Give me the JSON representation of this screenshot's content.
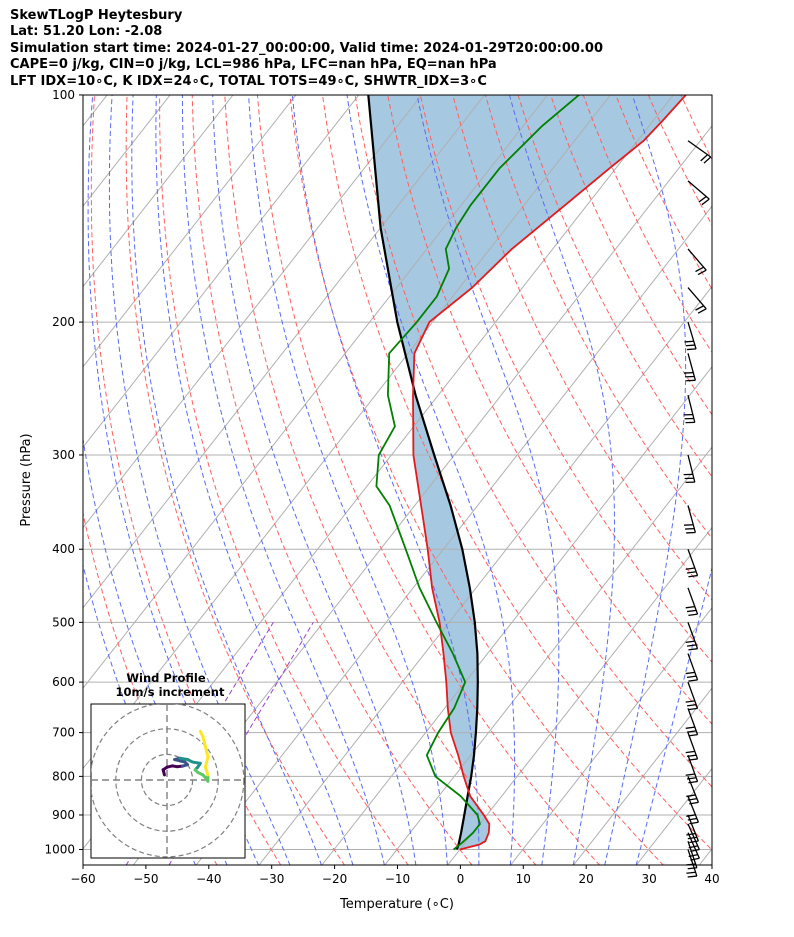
{
  "header": {
    "line1": "SkewTLogP Heytesbury",
    "line2": "Lat: 51.20   Lon: -2.08",
    "line3": "Simulation start time: 2024-01-27_00:00:00, Valid time: 2024-01-29T20:00:00.00",
    "line4": "CAPE=0 j/kg, CIN=0 j/kg, LCL=986 hPa, LFC=nan hPa, EQ=nan hPa",
    "line5": "LFT IDX=10∘C, K IDX=24∘C, TOTAL TOTS=49∘C, SHWTR_IDX=3∘C"
  },
  "chart_data": {
    "type": "skewt",
    "xlabel": "Temperature (∘C)",
    "ylabel": "Pressure (hPa)",
    "xlim": [
      -60,
      40
    ],
    "ylim": [
      1050,
      100
    ],
    "x_scale": "linear",
    "y_scale": "log",
    "grid": true,
    "x_ticks": [
      "−60",
      "−50",
      "−40",
      "−30",
      "−20",
      "−10",
      "0",
      "10",
      "20",
      "30",
      "40"
    ],
    "y_ticks": [
      100,
      200,
      300,
      400,
      500,
      600,
      700,
      800,
      900,
      1000
    ],
    "temperature": {
      "color": "#e41a1c",
      "pressure": [
        1000,
        985,
        975,
        950,
        925,
        900,
        850,
        800,
        750,
        700,
        650,
        600,
        550,
        500,
        450,
        400,
        350,
        300,
        250,
        220,
        200,
        180,
        160,
        140,
        125,
        115,
        108,
        100
      ],
      "temp": [
        10,
        12.5,
        13,
        12.5,
        11.5,
        9.5,
        5,
        1.5,
        -2,
        -6,
        -9.5,
        -13,
        -17,
        -21.5,
        -27,
        -32.5,
        -39,
        -46.5,
        -54,
        -59,
        -60.5,
        -58,
        -56.5,
        -53.5,
        -51,
        -49,
        -48.5,
        -48
      ]
    },
    "dewpoint": {
      "color": "#008000",
      "pressure": [
        1000,
        980,
        950,
        925,
        900,
        850,
        800,
        750,
        700,
        650,
        600,
        550,
        500,
        450,
        400,
        350,
        330,
        300,
        275,
        250,
        220,
        200,
        185,
        170,
        160,
        150,
        140,
        125,
        110,
        100
      ],
      "dewpoint": [
        9,
        9.5,
        10,
        10,
        8.5,
        3.5,
        -3,
        -7,
        -8,
        -8.5,
        -10,
        -15.5,
        -22,
        -29,
        -36,
        -44,
        -48.5,
        -52,
        -53,
        -58,
        -63,
        -62.5,
        -62.5,
        -64,
        -67,
        -68,
        -68.5,
        -68.5,
        -67,
        -65
      ]
    },
    "parcel": {
      "color": "#000000",
      "pressure": [
        1000,
        986,
        950,
        900,
        850,
        800,
        750,
        700,
        650,
        600,
        550,
        500,
        450,
        400,
        350,
        300,
        250,
        200,
        150,
        100
      ],
      "temp": [
        9.5,
        9.2,
        8.1,
        6.4,
        4.6,
        2.7,
        0.5,
        -2.0,
        -4.8,
        -8.0,
        -11.6,
        -15.9,
        -21.0,
        -27.0,
        -34.3,
        -43.2,
        -53.6,
        -65.6,
        -80.0,
        -98.5
      ]
    },
    "wind_barbs": [
      {
        "p": 1000,
        "u": -2,
        "v": 6
      },
      {
        "p": 975,
        "u": -3,
        "v": 9
      },
      {
        "p": 950,
        "u": -4,
        "v": 9
      },
      {
        "p": 925,
        "u": -4,
        "v": 9
      },
      {
        "p": 900,
        "u": -4,
        "v": 10
      },
      {
        "p": 850,
        "u": -4,
        "v": 10
      },
      {
        "p": 800,
        "u": -4,
        "v": 10
      },
      {
        "p": 750,
        "u": -4,
        "v": 11
      },
      {
        "p": 700,
        "u": -4,
        "v": 11
      },
      {
        "p": 650,
        "u": -4,
        "v": 11
      },
      {
        "p": 600,
        "u": -4,
        "v": 11
      },
      {
        "p": 550,
        "u": -4,
        "v": 11
      },
      {
        "p": 500,
        "u": -4,
        "v": 11
      },
      {
        "p": 450,
        "u": -4,
        "v": 11
      },
      {
        "p": 400,
        "u": -4,
        "v": 11
      },
      {
        "p": 350,
        "u": -3,
        "v": 11
      },
      {
        "p": 300,
        "u": -3,
        "v": 12
      },
      {
        "p": 250,
        "u": -3,
        "v": 12
      },
      {
        "p": 220,
        "u": -3,
        "v": 11
      },
      {
        "p": 200,
        "u": -3,
        "v": 10
      },
      {
        "p": 180,
        "u": -6,
        "v": 7
      },
      {
        "p": 160,
        "u": -6,
        "v": 7
      },
      {
        "p": 130,
        "u": -7,
        "v": 6
      },
      {
        "p": 115,
        "u": -7,
        "v": 5
      }
    ],
    "inset": {
      "title": "Wind Profile",
      "subtitle": "10m/s increment",
      "rings_ms": [
        10,
        20,
        30
      ],
      "hodograph": [
        {
          "u": -1,
          "v": 2
        },
        {
          "u": -1.5,
          "v": 4
        },
        {
          "u": 0,
          "v": 5
        },
        {
          "u": 2,
          "v": 5.5
        },
        {
          "u": 4,
          "v": 5.2
        },
        {
          "u": 6,
          "v": 5.4
        },
        {
          "u": 8,
          "v": 6
        },
        {
          "u": 7,
          "v": 7
        },
        {
          "u": 5,
          "v": 7.5
        },
        {
          "u": 3,
          "v": 8
        },
        {
          "u": 5,
          "v": 8.5
        },
        {
          "u": 8,
          "v": 8
        },
        {
          "u": 10,
          "v": 7
        },
        {
          "u": 13,
          "v": 6.5
        },
        {
          "u": 12,
          "v": 5
        },
        {
          "u": 11,
          "v": 4
        },
        {
          "u": 12,
          "v": 3
        },
        {
          "u": 14,
          "v": 2
        },
        {
          "u": 15,
          "v": 1
        },
        {
          "u": 16,
          "v": -0.5
        },
        {
          "u": 16,
          "v": 2
        },
        {
          "u": 15,
          "v": 5
        },
        {
          "u": 16,
          "v": 9
        },
        {
          "u": 15,
          "v": 13
        },
        {
          "u": 14,
          "v": 17
        },
        {
          "u": 13,
          "v": 19
        }
      ]
    }
  }
}
